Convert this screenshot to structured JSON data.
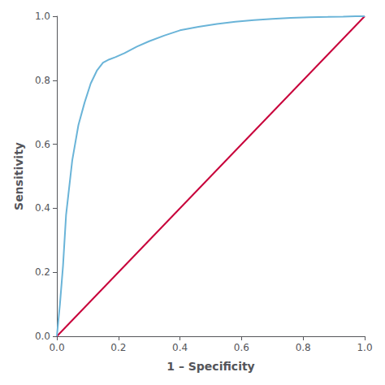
{
  "chart_data": {
    "type": "line",
    "xlabel": "1 – Specificity",
    "ylabel": "Sensitivity",
    "xlim": [
      0.0,
      1.0
    ],
    "ylim": [
      0.0,
      1.0
    ],
    "xticks": [
      {
        "value": 0.0,
        "label": "0.0"
      },
      0.2,
      0.4,
      0.6,
      0.8,
      {
        "value": 1.0,
        "label": "1.0"
      }
    ],
    "yticks": [
      {
        "value": 0.0,
        "label": "0.0"
      },
      0.2,
      0.4,
      0.6,
      0.8,
      {
        "value": 1.0,
        "label": "1.0"
      }
    ],
    "grid": false,
    "series": [
      {
        "color": "#c8003a",
        "x": [
          0,
          1
        ],
        "values": [
          0,
          1
        ]
      },
      {
        "color": "#6ab4d8",
        "x": [
          0.0,
          0.01,
          0.02,
          0.03,
          0.05,
          0.07,
          0.09,
          0.11,
          0.13,
          0.15,
          0.17,
          0.19,
          0.22,
          0.26,
          0.3,
          0.35,
          0.4,
          0.46,
          0.52,
          0.58,
          0.64,
          0.7,
          0.76,
          0.82,
          0.88,
          0.93,
          0.97,
          1.0
        ],
        "values": [
          0.0,
          0.1,
          0.22,
          0.38,
          0.55,
          0.66,
          0.73,
          0.79,
          0.83,
          0.855,
          0.865,
          0.872,
          0.885,
          0.905,
          0.922,
          0.94,
          0.956,
          0.967,
          0.976,
          0.983,
          0.988,
          0.992,
          0.995,
          0.997,
          0.998,
          0.999,
          1.0,
          1.0
        ]
      }
    ]
  }
}
